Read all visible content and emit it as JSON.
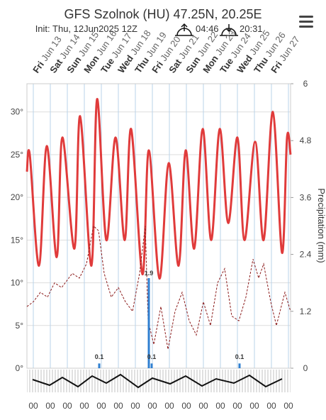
{
  "chart_data": {
    "type": "line",
    "title": "GFS Szolnok (HU) 47.25N, 20.25E",
    "init": "Init: Thu, 12Jun2025 12Z",
    "sunrise": "04:46",
    "sunset": "20:31",
    "days": [
      {
        "weekday": "Fri",
        "date": "Jun 13"
      },
      {
        "weekday": "Sat",
        "date": "Jun 14"
      },
      {
        "weekday": "Sun",
        "date": "Jun 15"
      },
      {
        "weekday": "Mon",
        "date": "Jun 16"
      },
      {
        "weekday": "Tue",
        "date": "Jun 17"
      },
      {
        "weekday": "Wed",
        "date": "Jun 18"
      },
      {
        "weekday": "Thu",
        "date": "Jun 19"
      },
      {
        "weekday": "Fri",
        "date": "Jun 20"
      },
      {
        "weekday": "Sat",
        "date": "Jun 21"
      },
      {
        "weekday": "Sun",
        "date": "Jun 22"
      },
      {
        "weekday": "Mon",
        "date": "Jun 23"
      },
      {
        "weekday": "Tue",
        "date": "Jun 24"
      },
      {
        "weekday": "Wed",
        "date": "Jun 25"
      },
      {
        "weekday": "Thu",
        "date": "Jun 26"
      },
      {
        "weekday": "Fri",
        "date": "Jun 27"
      }
    ],
    "xlim": [
      -9,
      363
    ],
    "xticks": [
      {
        "value": 0,
        "label": "00"
      },
      {
        "value": 24,
        "label": "00"
      },
      {
        "value": 48,
        "label": "00"
      },
      {
        "value": 72,
        "label": "00"
      },
      {
        "value": 96,
        "label": "00"
      },
      {
        "value": 120,
        "label": "00"
      },
      {
        "value": 144,
        "label": "00"
      },
      {
        "value": 168,
        "label": "00"
      },
      {
        "value": 192,
        "label": "00"
      },
      {
        "value": 216,
        "label": "00"
      },
      {
        "value": 240,
        "label": "00"
      },
      {
        "value": 264,
        "label": "00"
      },
      {
        "value": 288,
        "label": "00"
      },
      {
        "value": 312,
        "label": "00"
      },
      {
        "value": 336,
        "label": "00"
      },
      {
        "value": 360,
        "label": "00"
      }
    ],
    "ylim": [
      0,
      33.3
    ],
    "yticks": [
      {
        "value": 0,
        "label": "0°"
      },
      {
        "value": 5,
        "label": "5°"
      },
      {
        "value": 10,
        "label": "10°"
      },
      {
        "value": 15,
        "label": "15°"
      },
      {
        "value": 20,
        "label": "20°"
      },
      {
        "value": 25,
        "label": "25°"
      },
      {
        "value": 30,
        "label": "30°"
      }
    ],
    "y2lim": [
      0,
      6
    ],
    "y2ticks": [
      0,
      1.2,
      2.4,
      3.6,
      4.8,
      6
    ],
    "y2label": "Precipitation (mm)",
    "grid": true,
    "series": [
      {
        "color": "#e03b3b",
        "x": [
          -9,
          -5,
          8,
          19,
          33,
          41,
          58,
          66,
          82,
          90,
          103,
          116,
          129,
          138,
          154,
          163,
          178,
          191,
          205,
          215,
          227,
          239,
          251,
          263,
          275,
          288,
          298,
          313,
          325,
          338,
          351,
          358,
          363
        ],
        "values": [
          23,
          25,
          12,
          26,
          13,
          27,
          14,
          29.5,
          12,
          31.5,
          15,
          27,
          15,
          28,
          11,
          25.5,
          10.5,
          24,
          12,
          25.5,
          14,
          28,
          15,
          28,
          17,
          27,
          15,
          26.5,
          15,
          30,
          13.5,
          27,
          25
        ]
      },
      {
        "color": "#8b1a1a",
        "dashed": true,
        "axis": "y2",
        "x": [
          -9,
          0,
          10,
          20,
          30,
          40,
          55,
          65,
          75,
          85,
          92,
          100,
          110,
          120,
          130,
          140,
          150,
          158,
          162,
          170,
          180,
          190,
          200,
          210,
          220,
          230,
          240,
          250,
          260,
          270,
          280,
          290,
          300,
          310,
          318,
          325,
          335,
          343,
          355,
          363
        ],
        "values": [
          1.3,
          1.4,
          1.6,
          1.5,
          1.8,
          1.7,
          2.0,
          1.9,
          2.2,
          3.0,
          2.9,
          2.0,
          1.5,
          1.7,
          1.4,
          1.2,
          2.0,
          3.0,
          1.0,
          0.5,
          1.3,
          0.4,
          1.2,
          1.6,
          1.0,
          0.7,
          1.4,
          0.9,
          1.8,
          2.1,
          1.1,
          1.0,
          1.5,
          2.3,
          1.9,
          2.2,
          1.4,
          0.9,
          1.6,
          1.2
        ]
      },
      {
        "type": "bar",
        "color": "#2f7fd0",
        "axis": "y2",
        "x": [
          93,
          163,
          167,
          291
        ],
        "values": [
          0.1,
          1.9,
          0.1,
          0.1
        ]
      }
    ]
  }
}
